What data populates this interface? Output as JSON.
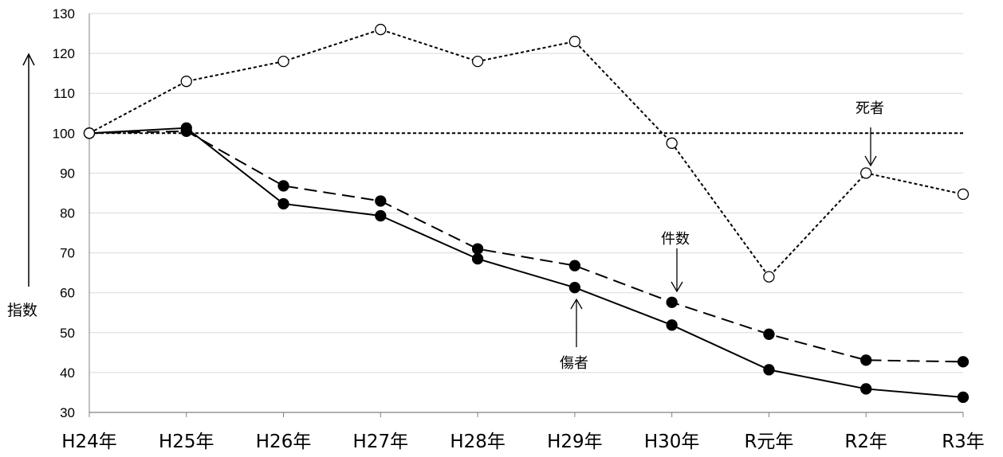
{
  "chart_data": {
    "type": "line",
    "title": "",
    "xlabel": "",
    "ylabel": "指数",
    "ylim": [
      30,
      130
    ],
    "yticks": [
      30,
      40,
      50,
      60,
      70,
      80,
      90,
      100,
      110,
      120,
      130
    ],
    "grid": "horizontal",
    "categories": [
      "H24年",
      "H25年",
      "H26年",
      "H27年",
      "H28年",
      "H29年",
      "H30年",
      "R元年",
      "R2年",
      "R3年"
    ],
    "reference_line": 100,
    "series": [
      {
        "name": "死者",
        "style": "dotted",
        "marker": "open-circle",
        "values": [
          100,
          113,
          118,
          126,
          118,
          123,
          97.5,
          64,
          90,
          84.7
        ]
      },
      {
        "name": "件数",
        "style": "dashed",
        "marker": "filled-circle",
        "values": [
          100,
          100.5,
          86.8,
          83,
          71,
          66.8,
          57.6,
          49.6,
          43.1,
          42.7
        ]
      },
      {
        "name": "傷者",
        "style": "solid",
        "marker": "filled-circle",
        "values": [
          100,
          101.3,
          82.3,
          79.3,
          68.5,
          61.3,
          51.9,
          40.7,
          35.9,
          33.8
        ]
      }
    ],
    "annotations": {
      "deaths": "死者",
      "cases": "件数",
      "injured": "傷者"
    }
  },
  "colors": {
    "line": "#000000",
    "grid": "#d9d9d9",
    "axis": "#808080",
    "marker_fill_open": "#ffffff"
  }
}
